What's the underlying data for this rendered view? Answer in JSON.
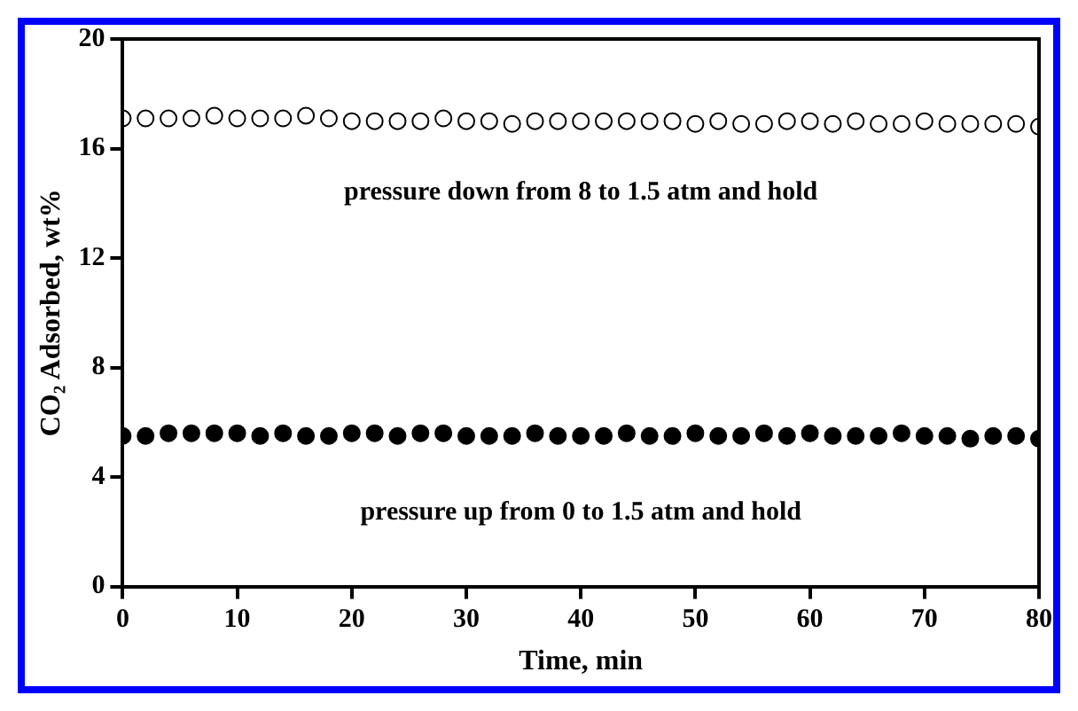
{
  "chart_data": {
    "type": "scatter",
    "xlabel": "Time, min",
    "ylabel": "CO₂ Adsorbed, wt%",
    "xlim": [
      0,
      80
    ],
    "xticks": [
      0,
      10,
      20,
      30,
      40,
      50,
      60,
      70,
      80
    ],
    "ylim": [
      0,
      20
    ],
    "yticks": [
      0,
      4,
      8,
      12,
      16,
      20
    ],
    "grid": false,
    "legend": false,
    "marker": "circle",
    "x": [
      0,
      2,
      4,
      6,
      8,
      10,
      12,
      14,
      16,
      18,
      20,
      22,
      24,
      26,
      28,
      30,
      32,
      34,
      36,
      38,
      40,
      42,
      44,
      46,
      48,
      50,
      52,
      54,
      56,
      58,
      60,
      62,
      64,
      66,
      68,
      70,
      72,
      74,
      76,
      78,
      80
    ],
    "series": [
      {
        "color": "#000000",
        "values": [
          17.1,
          17.1,
          17.1,
          17.1,
          17.2,
          17.1,
          17.1,
          17.1,
          17.2,
          17.1,
          17.0,
          17.0,
          17.0,
          17.0,
          17.1,
          17.0,
          17.0,
          16.9,
          17.0,
          17.0,
          17.0,
          17.0,
          17.0,
          17.0,
          17.0,
          16.9,
          17.0,
          16.9,
          16.9,
          17.0,
          17.0,
          16.9,
          17.0,
          16.9,
          16.9,
          17.0,
          16.9,
          16.9,
          16.9,
          16.9,
          16.8
        ]
      },
      {
        "color": "#000000",
        "values": [
          5.5,
          5.5,
          5.6,
          5.6,
          5.6,
          5.6,
          5.5,
          5.6,
          5.5,
          5.5,
          5.6,
          5.6,
          5.5,
          5.6,
          5.6,
          5.5,
          5.5,
          5.5,
          5.6,
          5.5,
          5.5,
          5.5,
          5.6,
          5.5,
          5.5,
          5.6,
          5.5,
          5.5,
          5.6,
          5.5,
          5.6,
          5.5,
          5.5,
          5.5,
          5.6,
          5.5,
          5.5,
          5.4,
          5.5,
          5.5,
          5.4
        ]
      }
    ],
    "annotations": [
      "pressure down from 8 to 1.5 atm and hold",
      "pressure up from 0 to 1.5 atm and hold"
    ]
  }
}
